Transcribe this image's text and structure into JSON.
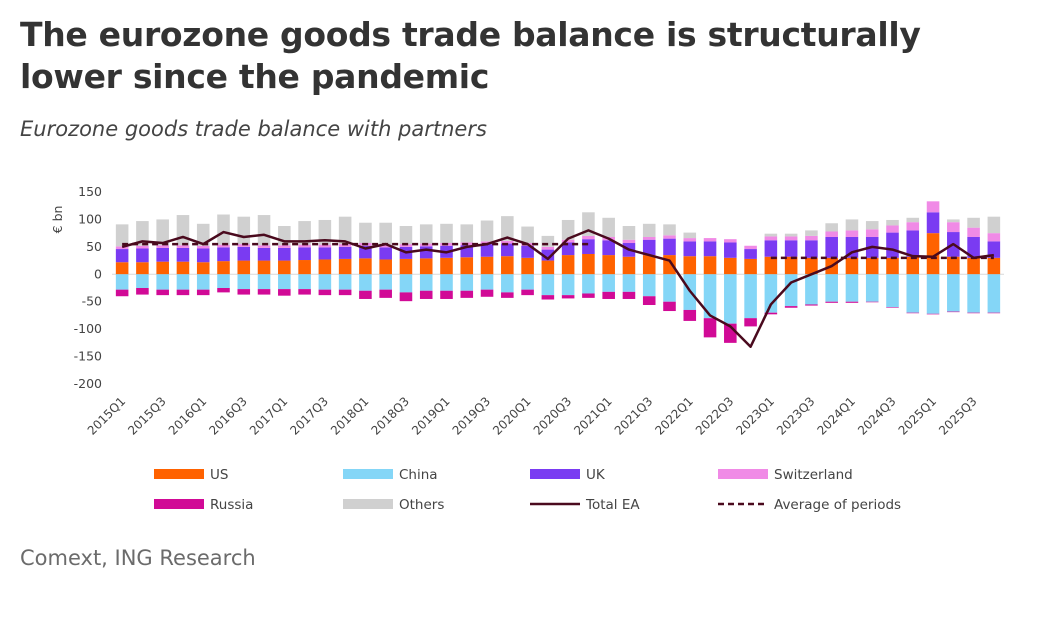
{
  "title": "The eurozone goods trade balance is structurally lower since the pandemic",
  "subtitle": "Eurozone goods trade balance with partners",
  "source": "Comext, ING Research",
  "chart_data": {
    "type": "bar",
    "stacked": true,
    "ylabel": "€ bn",
    "ylim": [
      -200,
      150
    ],
    "yticks": [
      150,
      100,
      50,
      0,
      -50,
      -100,
      -150,
      -200
    ],
    "categories": [
      "2015Q1",
      "2015Q2",
      "2015Q3",
      "2015Q4",
      "2016Q1",
      "2016Q2",
      "2016Q3",
      "2016Q4",
      "2017Q1",
      "2017Q2",
      "2017Q3",
      "2017Q4",
      "2018Q1",
      "2018Q2",
      "2018Q3",
      "2018Q4",
      "2019Q1",
      "2019Q2",
      "2019Q3",
      "2019Q4",
      "2020Q1",
      "2020Q2",
      "2020Q3",
      "2020Q4",
      "2021Q1",
      "2021Q2",
      "2021Q3",
      "2021Q4",
      "2022Q1",
      "2022Q2",
      "2022Q3",
      "2022Q4",
      "2023Q1",
      "2023Q2",
      "2023Q3",
      "2023Q4",
      "2024Q1",
      "2024Q2",
      "2024Q3",
      "2024Q4",
      "2025Q1",
      "2025Q2",
      "2025Q3",
      "2025Q4"
    ],
    "xtick_labels": [
      "2015Q1",
      "2015Q3",
      "2016Q1",
      "2016Q3",
      "2017Q1",
      "2017Q3",
      "2018Q1",
      "2018Q3",
      "2019Q1",
      "2019Q3",
      "2020Q1",
      "2020Q3",
      "2021Q1",
      "2021Q3",
      "2022Q1",
      "2022Q3",
      "2023Q1",
      "2023Q3",
      "2024Q1",
      "2024Q3",
      "2025Q1",
      "2025Q3"
    ],
    "colors": {
      "US": "#ff6200",
      "China": "#84d6f7",
      "UK": "#7a3bf2",
      "Switzerland": "#f08ae6",
      "Russia": "#d10a96",
      "Others": "#d0d0d0",
      "Total EA": "#4a0a1e",
      "Average of periods": "#4a0a1e"
    },
    "series": [
      {
        "name": "US",
        "kind": "bar",
        "values": [
          22,
          22,
          23,
          23,
          22,
          24,
          25,
          25,
          25,
          26,
          27,
          28,
          29,
          27,
          28,
          29,
          30,
          31,
          32,
          33,
          30,
          25,
          35,
          37,
          35,
          32,
          35,
          35,
          33,
          33,
          30,
          28,
          32,
          32,
          30,
          30,
          30,
          30,
          30,
          32,
          75,
          32,
          30,
          30
        ]
      },
      {
        "name": "China",
        "kind": "bar",
        "values": [
          -28,
          -25,
          -28,
          -28,
          -28,
          -25,
          -27,
          -27,
          -27,
          -27,
          -28,
          -28,
          -30,
          -28,
          -33,
          -30,
          -30,
          -30,
          -28,
          -33,
          -28,
          -38,
          -38,
          -35,
          -32,
          -32,
          -40,
          -50,
          -65,
          -80,
          -90,
          -80,
          -70,
          -58,
          -55,
          -50,
          -50,
          -50,
          -60,
          -70,
          -72,
          -68,
          -70,
          -70
        ]
      },
      {
        "name": "UK",
        "kind": "bar",
        "values": [
          24,
          25,
          25,
          25,
          25,
          25,
          25,
          23,
          23,
          23,
          22,
          22,
          23,
          22,
          22,
          22,
          22,
          22,
          23,
          23,
          22,
          20,
          23,
          27,
          27,
          25,
          28,
          30,
          27,
          27,
          28,
          18,
          30,
          30,
          32,
          38,
          38,
          38,
          46,
          48,
          38,
          45,
          38,
          30
        ]
      },
      {
        "name": "Switzerland",
        "kind": "bar",
        "values": [
          5,
          5,
          5,
          5,
          5,
          5,
          5,
          5,
          5,
          5,
          5,
          5,
          5,
          5,
          5,
          5,
          5,
          5,
          5,
          5,
          5,
          5,
          5,
          6,
          6,
          6,
          5,
          6,
          6,
          6,
          6,
          6,
          7,
          7,
          8,
          10,
          12,
          14,
          13,
          15,
          20,
          18,
          17,
          15
        ]
      },
      {
        "name": "Russia",
        "kind": "bar",
        "values": [
          -12,
          -12,
          -10,
          -10,
          -10,
          -8,
          -10,
          -10,
          -12,
          -10,
          -10,
          -10,
          -15,
          -15,
          -16,
          -15,
          -15,
          -13,
          -13,
          -10,
          -10,
          -8,
          -6,
          -8,
          -13,
          -13,
          -16,
          -17,
          -20,
          -35,
          -35,
          -15,
          -3,
          -3,
          -2,
          -2,
          -2,
          -1,
          -1,
          -1,
          -1,
          -1,
          -1,
          -1
        ]
      },
      {
        "name": "Others",
        "kind": "bar",
        "values": [
          40,
          45,
          47,
          55,
          40,
          55,
          50,
          55,
          35,
          43,
          45,
          50,
          37,
          40,
          33,
          35,
          35,
          33,
          38,
          45,
          30,
          20,
          36,
          43,
          35,
          25,
          24,
          20,
          10,
          0,
          0,
          0,
          5,
          5,
          10,
          15,
          20,
          15,
          10,
          8,
          0,
          5,
          18,
          30
        ]
      },
      {
        "name": "Total EA",
        "kind": "line",
        "values": [
          50,
          60,
          57,
          68,
          55,
          77,
          68,
          72,
          60,
          60,
          62,
          60,
          47,
          55,
          40,
          45,
          40,
          50,
          55,
          67,
          55,
          28,
          65,
          80,
          65,
          45,
          35,
          25,
          -30,
          -75,
          -95,
          -132,
          -55,
          -15,
          0,
          15,
          40,
          50,
          45,
          33,
          32,
          55,
          30,
          35
        ]
      },
      {
        "name": "Average of periods",
        "kind": "dashed",
        "segments": [
          {
            "from": "2015Q1",
            "to": "2020Q4",
            "value": 55
          },
          {
            "from": "2023Q1",
            "to": "2025Q4",
            "value": 30
          }
        ]
      }
    ],
    "legend": [
      {
        "label": "US",
        "swatch": "bar",
        "key": "US"
      },
      {
        "label": "China",
        "swatch": "bar",
        "key": "China"
      },
      {
        "label": "UK",
        "swatch": "bar",
        "key": "UK"
      },
      {
        "label": "Switzerland",
        "swatch": "bar",
        "key": "Switzerland"
      },
      {
        "label": "Russia",
        "swatch": "bar",
        "key": "Russia"
      },
      {
        "label": "Others",
        "swatch": "bar",
        "key": "Others"
      },
      {
        "label": "Total EA",
        "swatch": "line",
        "key": "Total EA"
      },
      {
        "label": "Average of periods",
        "swatch": "dashed",
        "key": "Average of periods"
      }
    ],
    "legend_position": "bottom",
    "grid": false
  }
}
